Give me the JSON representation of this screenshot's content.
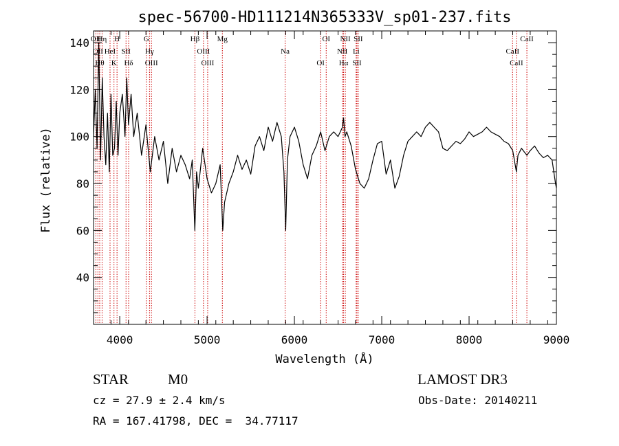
{
  "chart_data": {
    "type": "line",
    "title": "spec-56700-HD111214N365333V_sp01-237.fits",
    "xlabel": "Wavelength (Å)",
    "ylabel": "Flux (relative)",
    "xlim": [
      3700,
      9000
    ],
    "ylim": [
      20,
      145
    ],
    "xticks": [
      4000,
      5000,
      6000,
      7000,
      8000,
      9000
    ],
    "yticks": [
      40,
      60,
      80,
      100,
      120,
      140
    ],
    "grid": false,
    "series": [
      {
        "x": [
          3700,
          3720,
          3740,
          3760,
          3780,
          3800,
          3820,
          3840,
          3860,
          3880,
          3900,
          3920,
          3940,
          3960,
          3980,
          4000,
          4030,
          4060,
          4080,
          4100,
          4130,
          4160,
          4200,
          4250,
          4300,
          4350,
          4400,
          4450,
          4500,
          4550,
          4600,
          4650,
          4700,
          4750,
          4800,
          4830,
          4860,
          4880,
          4900,
          4950,
          5000,
          5050,
          5100,
          5150,
          5180,
          5200,
          5250,
          5300,
          5350,
          5400,
          5450,
          5500,
          5550,
          5600,
          5650,
          5700,
          5750,
          5800,
          5850,
          5880,
          5900,
          5920,
          5950,
          6000,
          6050,
          6100,
          6150,
          6200,
          6250,
          6300,
          6350,
          6400,
          6450,
          6500,
          6550,
          6563,
          6580,
          6600,
          6650,
          6700,
          6750,
          6800,
          6850,
          6900,
          6950,
          7000,
          7050,
          7100,
          7150,
          7200,
          7250,
          7300,
          7350,
          7400,
          7450,
          7500,
          7550,
          7600,
          7650,
          7700,
          7750,
          7800,
          7850,
          7900,
          7950,
          8000,
          8050,
          8100,
          8150,
          8200,
          8250,
          8300,
          8350,
          8400,
          8450,
          8500,
          8542,
          8560,
          8600,
          8662,
          8700,
          8750,
          8800,
          8850,
          8900,
          8950,
          8990,
          9000
        ],
        "y": [
          100,
          120,
          95,
          140,
          90,
          125,
          100,
          88,
          110,
          85,
          118,
          92,
          95,
          115,
          92,
          110,
          118,
          100,
          125,
          105,
          118,
          100,
          110,
          92,
          105,
          85,
          100,
          90,
          98,
          80,
          95,
          85,
          92,
          88,
          82,
          90,
          60,
          85,
          78,
          95,
          82,
          76,
          80,
          88,
          60,
          72,
          80,
          85,
          92,
          86,
          90,
          84,
          96,
          100,
          94,
          104,
          98,
          106,
          100,
          85,
          60,
          90,
          100,
          104,
          98,
          88,
          82,
          92,
          96,
          102,
          94,
          100,
          102,
          100,
          104,
          108,
          100,
          102,
          96,
          86,
          80,
          78,
          82,
          90,
          97,
          98,
          84,
          90,
          78,
          83,
          92,
          98,
          100,
          102,
          100,
          104,
          106,
          104,
          102,
          95,
          94,
          96,
          98,
          97,
          99,
          102,
          100,
          101,
          102,
          104,
          102,
          101,
          100,
          98,
          97,
          94,
          85,
          92,
          95,
          92,
          94,
          96,
          93,
          91,
          92,
          90,
          80,
          78
        ]
      }
    ],
    "line_markers": [
      {
        "x": 3727,
        "label": "OII"
      },
      {
        "x": 3750,
        "label": "OII"
      },
      {
        "x": 3771,
        "label": "Hθ"
      },
      {
        "x": 3798,
        "label": "Hη"
      },
      {
        "x": 3889,
        "label": "HeI"
      },
      {
        "x": 3934,
        "label": "K"
      },
      {
        "x": 3969,
        "label": "H"
      },
      {
        "x": 4072,
        "label": "SII"
      },
      {
        "x": 4102,
        "label": "Hδ"
      },
      {
        "x": 4305,
        "label": "G"
      },
      {
        "x": 4341,
        "label": "Hγ"
      },
      {
        "x": 4363,
        "label": "OIII"
      },
      {
        "x": 4861,
        "label": "Hβ"
      },
      {
        "x": 4959,
        "label": "OIII"
      },
      {
        "x": 5007,
        "label": "OIII"
      },
      {
        "x": 5175,
        "label": "Mg"
      },
      {
        "x": 5894,
        "label": "Na"
      },
      {
        "x": 6300,
        "label": "OI"
      },
      {
        "x": 6364,
        "label": "OI"
      },
      {
        "x": 6548,
        "label": "NII"
      },
      {
        "x": 6563,
        "label": "Hα"
      },
      {
        "x": 6583,
        "label": "NII"
      },
      {
        "x": 6707,
        "label": "Li"
      },
      {
        "x": 6716,
        "label": "SII"
      },
      {
        "x": 6731,
        "label": "SII"
      },
      {
        "x": 8498,
        "label": "CaII"
      },
      {
        "x": 8542,
        "label": "CaII"
      },
      {
        "x": 8662,
        "label": "CaII"
      }
    ],
    "colors": {
      "spectrum": "#000000",
      "marker": "#cc0000",
      "frame": "#000000"
    }
  },
  "info": {
    "object_class": "STAR",
    "subclass": "M0",
    "survey": "LAMOST DR3",
    "cz": "cz = 27.9 ± 2.4 km/s",
    "obs_date": "Obs-Date: 20140211",
    "coords": "RA = 167.41798, DEC =  34.77117"
  }
}
